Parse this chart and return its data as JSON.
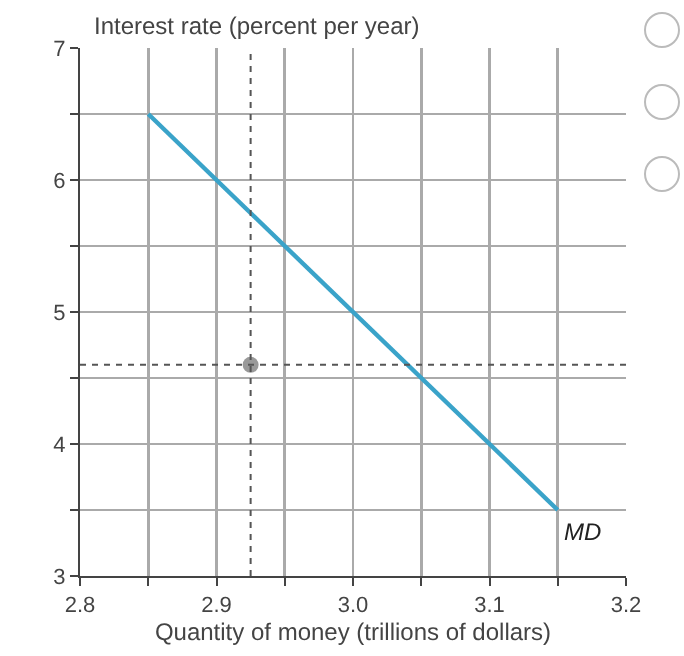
{
  "chart_data": {
    "type": "line",
    "ylabel": "Interest rate (percent per year)",
    "xlabel": "Quantity of money (trillions of dollars)",
    "xlim": [
      2.8,
      3.2
    ],
    "ylim": [
      3,
      7
    ],
    "xticks": [
      2.8,
      {
        "value": 2.85,
        "label": null
      },
      2.9,
      {
        "value": 2.95,
        "label": null
      },
      {
        "value": 3.0,
        "label": "3.0"
      },
      {
        "value": 3.05,
        "label": null
      },
      3.1,
      {
        "value": 3.15,
        "label": null
      },
      3.2
    ],
    "yticks": [
      3,
      {
        "value": 3.5,
        "label": null
      },
      4,
      {
        "value": 4.5,
        "label": null
      },
      5,
      {
        "value": 5.5,
        "label": null
      },
      6,
      {
        "value": 6.5,
        "label": null
      },
      7
    ],
    "grid": true,
    "legend": false,
    "series": [
      {
        "name": "MD",
        "color": "#3aa3c9",
        "x": [
          2.85,
          3.15
        ],
        "values": [
          6.5,
          3.5
        ],
        "marker": "none",
        "line_style": "solid"
      },
      {
        "type": "scatter",
        "color": "#999999",
        "x": [
          2.925
        ],
        "values": [
          4.6
        ],
        "marker": "circle"
      }
    ],
    "ref_lines": [
      {
        "axis": "x",
        "value": 2.925,
        "color": "#555555",
        "line_style": "dotted"
      },
      {
        "axis": "y",
        "value": 4.6,
        "color": "#555555",
        "line_style": "dotted"
      }
    ]
  }
}
